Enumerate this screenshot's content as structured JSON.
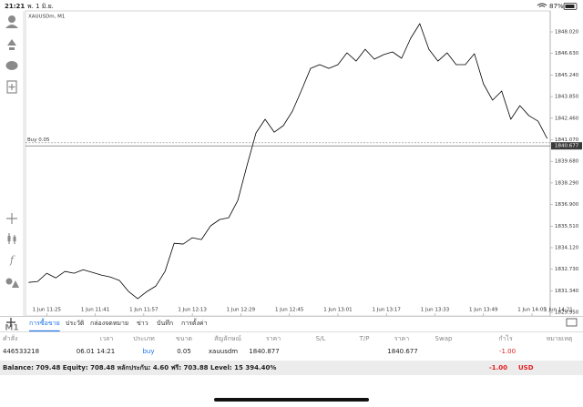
{
  "status_bar": {
    "time": "21:21",
    "date": "พ. 1 มิ.ย.",
    "battery": "87%"
  },
  "sidebar": {
    "timeframe": "M1"
  },
  "chart_data": {
    "type": "line",
    "title": "XAUUSDm, M1",
    "color": "#000000",
    "x": [
      "1 Jun 11:19",
      "1 Jun 11:22",
      "1 Jun 11:25",
      "1 Jun 11:28",
      "1 Jun 11:31",
      "1 Jun 11:34",
      "1 Jun 11:37",
      "1 Jun 11:40",
      "1 Jun 11:43",
      "1 Jun 11:46",
      "1 Jun 11:49",
      "1 Jun 11:52",
      "1 Jun 11:55",
      "1 Jun 11:58",
      "1 Jun 12:01",
      "1 Jun 12:04",
      "1 Jun 12:07",
      "1 Jun 12:10",
      "1 Jun 12:13",
      "1 Jun 12:16",
      "1 Jun 12:19",
      "1 Jun 12:22",
      "1 Jun 12:25",
      "1 Jun 12:28",
      "1 Jun 12:31",
      "1 Jun 12:34",
      "1 Jun 12:37",
      "1 Jun 12:40",
      "1 Jun 12:43",
      "1 Jun 12:46",
      "1 Jun 12:49",
      "1 Jun 12:52",
      "1 Jun 12:55",
      "1 Jun 12:58",
      "1 Jun 13:01",
      "1 Jun 13:04",
      "1 Jun 13:07",
      "1 Jun 13:10",
      "1 Jun 13:13",
      "1 Jun 13:16",
      "1 Jun 13:19",
      "1 Jun 13:22",
      "1 Jun 13:25",
      "1 Jun 13:28",
      "1 Jun 13:31",
      "1 Jun 13:34",
      "1 Jun 13:37",
      "1 Jun 13:40",
      "1 Jun 13:43",
      "1 Jun 13:46",
      "1 Jun 13:49",
      "1 Jun 13:52",
      "1 Jun 13:55",
      "1 Jun 13:58",
      "1 Jun 14:01",
      "1 Jun 14:04",
      "1 Jun 14:07",
      "1 Jun 14:10"
    ],
    "values": [
      1831.88,
      1831.94,
      1832.47,
      1832.17,
      1832.59,
      1832.47,
      1832.7,
      1832.53,
      1832.35,
      1832.23,
      1832.0,
      1831.29,
      1830.83,
      1831.29,
      1831.65,
      1832.59,
      1834.4,
      1834.35,
      1834.76,
      1834.64,
      1835.52,
      1835.93,
      1836.05,
      1837.16,
      1839.39,
      1841.51,
      1842.39,
      1841.56,
      1841.98,
      1842.91,
      1844.26,
      1845.67,
      1845.91,
      1845.67,
      1845.91,
      1846.67,
      1846.14,
      1846.9,
      1846.26,
      1846.55,
      1846.73,
      1846.32,
      1847.61,
      1848.55,
      1846.9,
      1846.14,
      1846.67,
      1845.91,
      1845.91,
      1846.61,
      1844.67,
      1843.62,
      1844.21,
      1842.39,
      1843.27,
      1842.62,
      1842.27,
      1841.15
    ],
    "xlim": [
      "1 Jun 11:18",
      "1 Jun 14:11"
    ],
    "xticks": [
      "1 Jun 11:25",
      "1 Jun 11:41",
      "1 Jun 11:57",
      "1 Jun 12:13",
      "1 Jun 12:29",
      "1 Jun 12:45",
      "1 Jun 13:01",
      "1 Jun 13:17",
      "1 Jun 13:33",
      "1 Jun 13:49",
      "1 Jun 14:05",
      "1 Jun 14:21"
    ],
    "ylim": [
      1829.72,
      1849.37
    ],
    "yticks": [
      {
        "value": 1829.95,
        "label": "1829.950"
      },
      {
        "value": 1831.34,
        "label": "1831.340"
      },
      {
        "value": 1832.73,
        "label": "1832.730"
      },
      {
        "value": 1834.12,
        "label": "1834.120"
      },
      {
        "value": 1835.51,
        "label": "1835.510"
      },
      {
        "value": 1836.9,
        "label": "1836.900"
      },
      {
        "value": 1838.29,
        "label": "1838.290"
      },
      {
        "value": 1839.68,
        "label": "1839.680"
      },
      {
        "value": 1841.07,
        "label": "1841.070"
      },
      {
        "value": 1842.46,
        "label": "1842.460"
      },
      {
        "value": 1843.85,
        "label": "1843.850"
      },
      {
        "value": 1845.24,
        "label": "1845.240"
      },
      {
        "value": 1846.63,
        "label": "1846.630"
      },
      {
        "value": 1848.02,
        "label": "1848.020"
      }
    ],
    "grid": false,
    "current_price": 1840.677,
    "orders": [
      {
        "label": "Buy 0.05",
        "value": 1840.877
      }
    ]
  },
  "tabs": [
    "การซื้อขาย",
    "ประวัติ",
    "กล่องจดหมาย",
    "ข่าว",
    "บันทึก",
    "การตั้งค่า"
  ],
  "active_tab": 0,
  "table": {
    "columns": [
      "คำสั่ง",
      "เวลา",
      "ประเภท",
      "ขนาด",
      "สัญลักษณ์",
      "ราคา",
      "S/L",
      "T/P",
      "ราคา",
      "Swap",
      "กำไร",
      "หมายเหตุ"
    ],
    "rows": [
      [
        "446533218",
        "06.01 14:21",
        "buy",
        "0.05",
        "xauusdm",
        "1840.877",
        null,
        null,
        "1840.677",
        null,
        "-1.00",
        null
      ]
    ]
  },
  "summary": {
    "balance": "Balance: 709.48 Equity: 708.48 หลักประกัน: 4.60 ฟรี: 703.88 Level: 15 394.40%",
    "profit": "-1.00",
    "currency": "USD"
  }
}
